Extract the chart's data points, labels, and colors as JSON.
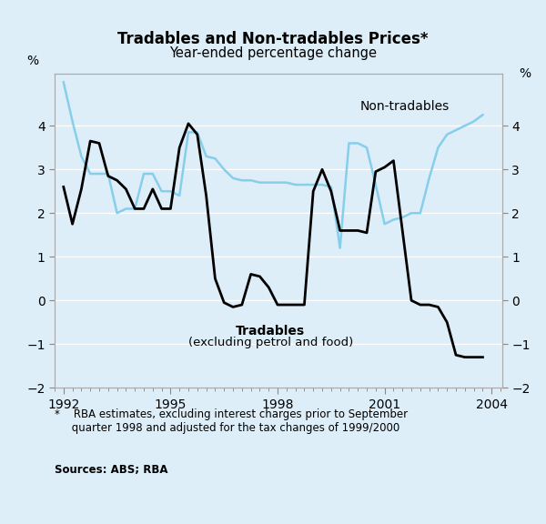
{
  "title": "Tradables and Non-tradables Prices*",
  "subtitle": "Year-ended percentage change",
  "ylabel_left": "%",
  "ylabel_right": "%",
  "ylim": [
    -2,
    5.2
  ],
  "yticks": [
    -2,
    -1,
    0,
    1,
    2,
    3,
    4
  ],
  "footnote_star": "*    RBA estimates, excluding interest charges prior to September\n     quarter 1998 and adjusted for the tax changes of 1999/2000",
  "footnote_sources": "Sources: ABS; RBA",
  "background_color": "#ddeef9",
  "grid_color": "#ffffff",
  "tradables_label_line1": "Tradables",
  "tradables_label_line2": "(excluding petrol and food)",
  "nontradables_label": "Non-tradables",
  "tradables_color": "#000000",
  "nontradables_color": "#87ceeb",
  "tradables_x": [
    1992.0,
    1992.25,
    1992.5,
    1992.75,
    1993.0,
    1993.25,
    1993.5,
    1993.75,
    1994.0,
    1994.25,
    1994.5,
    1994.75,
    1995.0,
    1995.25,
    1995.5,
    1995.75,
    1996.0,
    1996.25,
    1996.5,
    1996.75,
    1997.0,
    1997.25,
    1997.5,
    1997.75,
    1998.0,
    1998.25,
    1998.5,
    1998.75,
    1999.0,
    1999.25,
    1999.5,
    1999.75,
    2000.0,
    2000.25,
    2000.5,
    2000.75,
    2001.0,
    2001.25,
    2001.5,
    2001.75,
    2002.0,
    2002.25,
    2002.5,
    2002.75,
    2003.0,
    2003.25,
    2003.5,
    2003.75
  ],
  "tradables_y": [
    2.6,
    1.75,
    2.55,
    3.65,
    3.6,
    2.85,
    2.75,
    2.55,
    2.1,
    2.1,
    2.55,
    2.1,
    2.1,
    3.5,
    4.05,
    3.8,
    2.4,
    0.5,
    -0.05,
    -0.15,
    -0.1,
    0.6,
    0.55,
    0.3,
    -0.1,
    -0.1,
    -0.1,
    -0.1,
    2.5,
    3.0,
    2.5,
    1.6,
    1.6,
    1.6,
    1.55,
    2.95,
    3.05,
    3.2,
    1.6,
    0.0,
    -0.1,
    -0.1,
    -0.15,
    -0.5,
    -1.25,
    -1.3,
    -1.3,
    -1.3
  ],
  "nontradables_x": [
    1992.0,
    1992.25,
    1992.5,
    1992.75,
    1993.0,
    1993.25,
    1993.5,
    1993.75,
    1994.0,
    1994.25,
    1994.5,
    1994.75,
    1995.0,
    1995.25,
    1995.5,
    1995.75,
    1996.0,
    1996.25,
    1996.5,
    1996.75,
    1997.0,
    1997.25,
    1997.5,
    1997.75,
    1998.0,
    1998.25,
    1998.5,
    1998.75,
    1999.0,
    1999.25,
    1999.5,
    1999.75,
    2000.0,
    2000.25,
    2000.5,
    2000.75,
    2001.0,
    2001.25,
    2001.5,
    2001.75,
    2002.0,
    2002.25,
    2002.5,
    2002.75,
    2003.0,
    2003.25,
    2003.5,
    2003.75
  ],
  "nontradables_y": [
    5.0,
    4.1,
    3.3,
    2.9,
    2.9,
    2.9,
    2.0,
    2.1,
    2.1,
    2.9,
    2.9,
    2.5,
    2.5,
    2.4,
    3.85,
    3.85,
    3.3,
    3.25,
    3.0,
    2.8,
    2.75,
    2.75,
    2.7,
    2.7,
    2.7,
    2.7,
    2.65,
    2.65,
    2.65,
    2.65,
    2.6,
    1.2,
    3.6,
    3.6,
    3.5,
    2.65,
    1.75,
    1.85,
    1.9,
    2.0,
    2.0,
    2.8,
    3.5,
    3.8,
    3.9,
    4.0,
    4.1,
    4.25
  ]
}
